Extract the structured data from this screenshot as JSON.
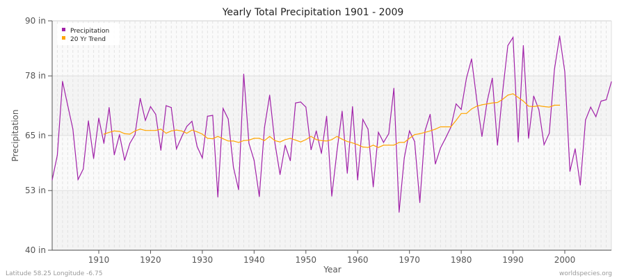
{
  "chart_data": {
    "type": "line",
    "title": "Yearly Total Precipitation 1901 - 2009",
    "xlabel": "Year",
    "ylabel": "Precipitation",
    "xlim": [
      1901,
      2009
    ],
    "ylim": [
      40,
      90
    ],
    "yticks": [
      40,
      53,
      65,
      78,
      90
    ],
    "ytick_labels": [
      "40 in",
      "53 in",
      "65 in",
      "78 in",
      "90 in"
    ],
    "xticks": [
      1910,
      1920,
      1930,
      1940,
      1950,
      1960,
      1970,
      1980,
      1990,
      2000
    ],
    "grid": true,
    "legend_position": "top-left",
    "series": [
      {
        "name": "Precipitation",
        "color": "#a020a8",
        "x_start": 1901,
        "values": [
          55.3,
          60.7,
          76.8,
          71.6,
          66.4,
          55.4,
          57.7,
          68.2,
          60.0,
          68.8,
          63.3,
          71.1,
          60.8,
          65.2,
          59.6,
          63.3,
          65.2,
          73.1,
          68.3,
          71.3,
          69.6,
          61.8,
          71.5,
          71.1,
          62.1,
          64.7,
          67.0,
          68.1,
          62.6,
          60.1,
          69.2,
          69.4,
          51.6,
          70.9,
          68.6,
          58.1,
          53.2,
          78.4,
          63.3,
          59.6,
          51.7,
          66.7,
          73.8,
          63.5,
          56.5,
          62.9,
          59.5,
          72.1,
          72.3,
          71.2,
          61.9,
          66.0,
          61.1,
          69.2,
          51.8,
          61.5,
          70.3,
          56.8,
          71.3,
          55.3,
          68.5,
          66.4,
          53.8,
          65.7,
          63.5,
          65.4,
          75.3,
          48.3,
          60.1,
          66.0,
          63.7,
          50.4,
          66.0,
          69.6,
          58.8,
          62.3,
          64.5,
          66.8,
          71.9,
          70.7,
          77.5,
          81.7,
          72.8,
          64.8,
          72.4,
          77.5,
          62.9,
          74.6,
          84.6,
          86.4,
          63.6,
          84.6,
          64.4,
          73.6,
          70.6,
          63.0,
          65.5,
          79.4,
          86.7,
          78.9,
          57.2,
          62.1,
          54.2,
          68.4,
          71.2,
          69.1,
          72.5,
          72.8,
          76.7
        ]
      },
      {
        "name": "20 Yr Trend",
        "color": "#ffa500",
        "x_start": 1911,
        "values": [
          65.3,
          65.7,
          66.0,
          65.9,
          65.4,
          65.3,
          66.0,
          66.4,
          66.1,
          66.1,
          66.1,
          66.4,
          65.5,
          66.0,
          66.2,
          66.0,
          65.5,
          66.2,
          65.8,
          65.3,
          64.4,
          64.3,
          64.8,
          64.3,
          63.8,
          63.8,
          63.5,
          63.9,
          64.0,
          64.4,
          64.4,
          63.9,
          64.8,
          63.9,
          63.6,
          64.1,
          64.4,
          64.0,
          63.6,
          64.1,
          64.8,
          64.1,
          63.9,
          63.8,
          64.1,
          64.8,
          64.2,
          63.7,
          63.4,
          63.0,
          62.5,
          62.4,
          62.9,
          62.4,
          62.9,
          62.9,
          62.9,
          63.5,
          63.5,
          64.4,
          65.2,
          65.4,
          65.7,
          66.0,
          66.4,
          66.9,
          66.9,
          66.9,
          68.3,
          69.8,
          69.8,
          70.8,
          71.4,
          71.7,
          71.9,
          72.1,
          72.2,
          72.9,
          73.8,
          74.1,
          73.3,
          72.5,
          71.4,
          71.3,
          71.5,
          71.3,
          71.2,
          71.6,
          71.6
        ]
      }
    ]
  },
  "footer": {
    "location": "Latitude 58.25 Longitude -6.75",
    "source": "worldspecies.org"
  }
}
